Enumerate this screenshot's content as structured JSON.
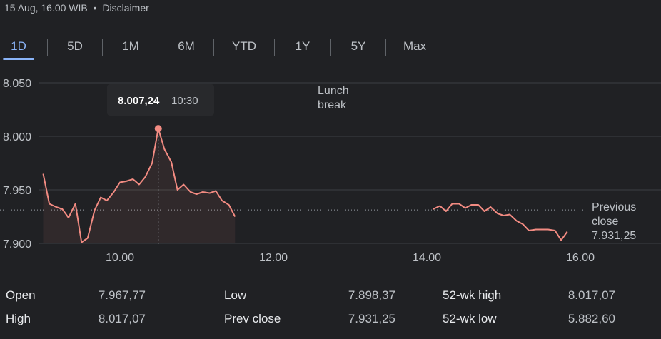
{
  "header": {
    "timestamp": "15 Aug, 16.00 WIB",
    "separator": "•",
    "disclaimer": "Disclaimer"
  },
  "tabs": [
    {
      "label": "1D",
      "active": true
    },
    {
      "label": "5D",
      "active": false
    },
    {
      "label": "1M",
      "active": false
    },
    {
      "label": "6M",
      "active": false
    },
    {
      "label": "YTD",
      "active": false
    },
    {
      "label": "1Y",
      "active": false
    },
    {
      "label": "5Y",
      "active": false
    },
    {
      "label": "Max",
      "active": false
    }
  ],
  "chart_data": {
    "type": "line",
    "y_ticks": [
      "8.050",
      "8.000",
      "7.950",
      "7.900"
    ],
    "y_tick_values": [
      8050,
      8000,
      7950,
      7900
    ],
    "x_ticks": [
      "10.00",
      "12.00",
      "14.00",
      "16.00"
    ],
    "x_tick_values": [
      10,
      12,
      14,
      16
    ],
    "xlim": [
      9.0,
      16.5
    ],
    "ylim": [
      7895,
      8065
    ],
    "morning_series": {
      "x": [
        9.0,
        9.08,
        9.17,
        9.25,
        9.33,
        9.42,
        9.5,
        9.58,
        9.67,
        9.75,
        9.83,
        9.92,
        10.0,
        10.08,
        10.17,
        10.25,
        10.33,
        10.42,
        10.5,
        10.58,
        10.67,
        10.75,
        10.83,
        10.92,
        11.0,
        11.08,
        11.17,
        11.25,
        11.33,
        11.42,
        11.5
      ],
      "y": [
        7965,
        7937,
        7934,
        7932,
        7924,
        7937,
        7901,
        7905,
        7931,
        7943,
        7940,
        7948,
        7957,
        7958,
        7960,
        7955,
        7962,
        7975,
        8007.24,
        7988,
        7976,
        7950,
        7955,
        7948,
        7946,
        7948,
        7947,
        7949,
        7940,
        7936,
        7925
      ]
    },
    "afternoon_series": {
      "x": [
        14.08,
        14.17,
        14.25,
        14.33,
        14.42,
        14.5,
        14.58,
        14.67,
        14.75,
        14.83,
        14.92,
        15.0,
        15.08,
        15.17,
        15.25,
        15.33,
        15.42,
        15.5,
        15.58,
        15.67,
        15.75,
        15.83
      ],
      "y": [
        7932,
        7935,
        7930,
        7937,
        7937,
        7933,
        7936,
        7936,
        7930,
        7934,
        7928,
        7926,
        7927,
        7921,
        7918,
        7912,
        7913,
        7913,
        7913,
        7912,
        7903,
        7911
      ]
    },
    "previous_close": 7931.25,
    "previous_close_label_line1": "Previous",
    "previous_close_label_line2": "close",
    "previous_close_text": "7.931,25",
    "lunch_label_line1": "Lunch",
    "lunch_label_line2": "break",
    "tooltip": {
      "value": "8.007,24",
      "time": "10:30",
      "x": 10.5,
      "y": 8007.24
    },
    "line_color": "#f28b82",
    "grid": true
  },
  "stats": {
    "open_label": "Open",
    "open_value": "7.967,77",
    "high_label": "High",
    "high_value": "8.017,07",
    "low_label": "Low",
    "low_value": "7.898,37",
    "prev_close_label": "Prev close",
    "prev_close_value": "7.931,25",
    "wk52_high_label": "52-wk high",
    "wk52_high_value": "8.017,07",
    "wk52_low_label": "52-wk low",
    "wk52_low_value": "5.882,60"
  }
}
